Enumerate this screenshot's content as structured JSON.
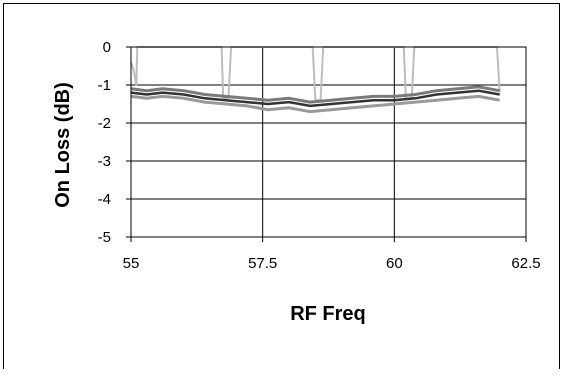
{
  "chart_data": {
    "type": "line",
    "title": "",
    "xlabel": "RF Freq",
    "ylabel": "On Loss (dB)",
    "xlim": [
      55,
      62.5
    ],
    "ylim": [
      -5,
      0
    ],
    "xticks": [
      "55",
      "57.5",
      "60",
      "62.5"
    ],
    "yticks": [
      "0",
      "-1",
      "-2",
      "-3",
      "-4",
      "-5"
    ],
    "grid": {
      "vertical": true,
      "horizontal": true
    },
    "legend": "none",
    "series": [
      {
        "color": "#bdbdbd",
        "x": [
          55.0,
          55.05,
          55.1,
          55.12,
          56.72,
          56.75,
          56.85,
          56.9,
          58.45,
          58.5,
          58.6,
          58.65,
          60.18,
          60.22,
          60.33,
          60.38,
          61.95,
          62.0
        ],
        "y": [
          -0.4,
          -0.6,
          -1.0,
          0.0,
          0.0,
          -1.35,
          -1.35,
          0.0,
          0.0,
          -1.4,
          -1.4,
          0.0,
          0.0,
          -1.35,
          -1.35,
          0.0,
          0.0,
          -1.2
        ]
      },
      {
        "color": "#9a9a9a",
        "x": [
          55.0,
          55.3,
          55.6,
          56.0,
          56.4,
          56.8,
          57.2,
          57.6,
          58.0,
          58.4,
          58.8,
          59.2,
          59.6,
          60.0,
          60.4,
          60.8,
          61.2,
          61.6,
          62.0
        ],
        "y": [
          -1.3,
          -1.35,
          -1.3,
          -1.35,
          -1.45,
          -1.5,
          -1.55,
          -1.65,
          -1.6,
          -1.7,
          -1.65,
          -1.6,
          -1.55,
          -1.5,
          -1.45,
          -1.4,
          -1.35,
          -1.3,
          -1.4
        ]
      },
      {
        "color": "#7a7a7a",
        "x": [
          55.0,
          55.3,
          55.6,
          56.0,
          56.4,
          56.8,
          57.2,
          57.6,
          58.0,
          58.4,
          58.8,
          59.2,
          59.6,
          60.0,
          60.4,
          60.8,
          61.2,
          61.6,
          62.0
        ],
        "y": [
          -1.1,
          -1.15,
          -1.1,
          -1.15,
          -1.25,
          -1.3,
          -1.35,
          -1.4,
          -1.35,
          -1.45,
          -1.4,
          -1.35,
          -1.3,
          -1.3,
          -1.25,
          -1.15,
          -1.1,
          -1.05,
          -1.15
        ]
      },
      {
        "color": "#333333",
        "x": [
          55.0,
          55.3,
          55.6,
          56.0,
          56.4,
          56.8,
          57.2,
          57.6,
          58.0,
          58.4,
          58.8,
          59.2,
          59.6,
          60.0,
          60.4,
          60.8,
          61.2,
          61.6,
          62.0
        ],
        "y": [
          -1.2,
          -1.25,
          -1.2,
          -1.25,
          -1.35,
          -1.4,
          -1.45,
          -1.5,
          -1.45,
          -1.55,
          -1.5,
          -1.45,
          -1.4,
          -1.4,
          -1.35,
          -1.25,
          -1.2,
          -1.15,
          -1.25
        ]
      }
    ]
  }
}
